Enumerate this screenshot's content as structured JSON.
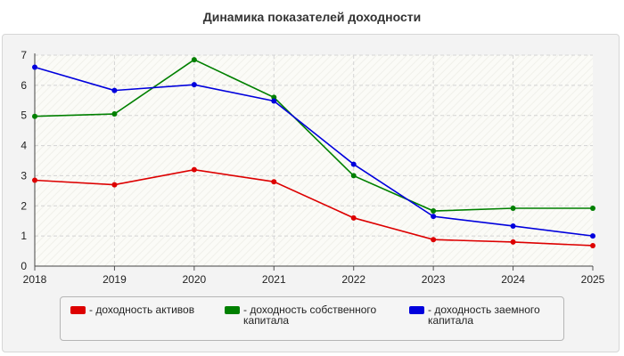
{
  "chart_data": {
    "type": "line",
    "title": "Динамика показателей доходности",
    "xlabel": "",
    "ylabel": "",
    "x": [
      "2018",
      "2019",
      "2020",
      "2021",
      "2022",
      "2023",
      "2024",
      "2025"
    ],
    "ylim": [
      0,
      7
    ],
    "yticks": [
      "0",
      "1",
      "2",
      "3",
      "4",
      "5",
      "6",
      "7"
    ],
    "grid": true,
    "legend_position": "bottom",
    "series": [
      {
        "name": "- доходность активов",
        "color": "#dd0000",
        "values": [
          2.85,
          2.7,
          3.2,
          2.8,
          1.6,
          0.88,
          0.8,
          0.68
        ]
      },
      {
        "name": "- доходность собственного\nкапитала",
        "color": "#008000",
        "values": [
          4.97,
          5.05,
          6.85,
          5.6,
          3.0,
          1.83,
          1.92,
          1.92
        ]
      },
      {
        "name": "- доходность заемного\nкапитала",
        "color": "#0000dd",
        "values": [
          6.6,
          5.83,
          6.02,
          5.48,
          3.38,
          1.65,
          1.33,
          1.0
        ]
      }
    ]
  }
}
